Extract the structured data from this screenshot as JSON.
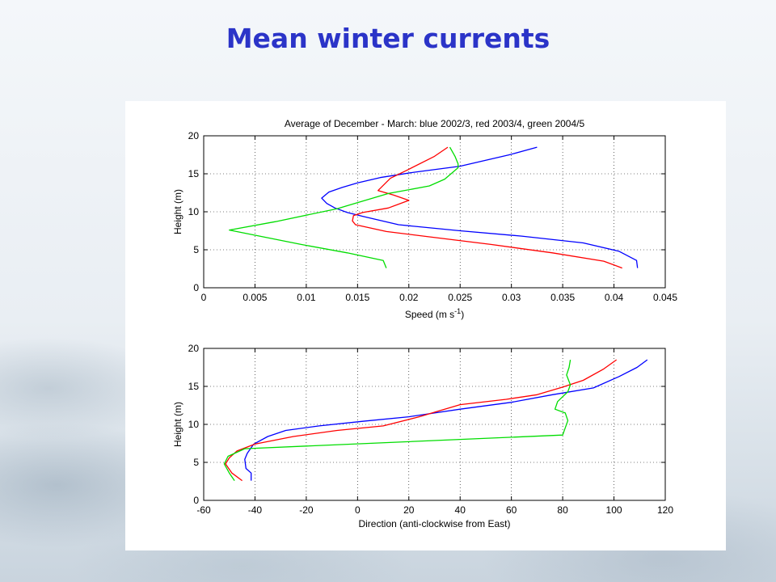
{
  "slide": {
    "title": "Mean winter currents"
  },
  "chart_data": [
    {
      "type": "line",
      "title": "Average of December - March: blue 2002/3, red 2003/4, green 2004/5",
      "xlabel_prefix": "Speed (m s",
      "xlabel_sup": "-1",
      "xlabel_suffix": ")",
      "ylabel": "Height (m)",
      "xlim": [
        0,
        0.045
      ],
      "ylim": [
        0,
        20
      ],
      "xticks": [
        0,
        0.005,
        0.01,
        0.015,
        0.02,
        0.025,
        0.03,
        0.035,
        0.04,
        0.045
      ],
      "xtick_labels": [
        "0",
        "0.005",
        "0.01",
        "0.015",
        "0.02",
        "0.025",
        "0.03",
        "0.035",
        "0.04",
        "0.045"
      ],
      "yticks": [
        0,
        5,
        10,
        15,
        20
      ],
      "ytick_labels": [
        "0",
        "5",
        "10",
        "15",
        "20"
      ],
      "grid": true,
      "series": [
        {
          "color": "#0000ff",
          "points": [
            [
              0.0423,
              2.6
            ],
            [
              0.0422,
              3.6
            ],
            [
              0.0405,
              4.8
            ],
            [
              0.037,
              5.9
            ],
            [
              0.031,
              6.8
            ],
            [
              0.025,
              7.5
            ],
            [
              0.019,
              8.3
            ],
            [
              0.0155,
              9.4
            ],
            [
              0.014,
              9.9
            ],
            [
              0.0128,
              10.5
            ],
            [
              0.012,
              11.1
            ],
            [
              0.0115,
              11.8
            ],
            [
              0.0122,
              12.6
            ],
            [
              0.0135,
              13.2
            ],
            [
              0.015,
              13.8
            ],
            [
              0.0172,
              14.5
            ],
            [
              0.0205,
              15.2
            ],
            [
              0.025,
              16.0
            ],
            [
              0.0298,
              17.5
            ],
            [
              0.0325,
              18.5
            ]
          ]
        },
        {
          "color": "#ff0000",
          "points": [
            [
              0.0408,
              2.6
            ],
            [
              0.039,
              3.5
            ],
            [
              0.034,
              4.6
            ],
            [
              0.028,
              5.7
            ],
            [
              0.022,
              6.7
            ],
            [
              0.0178,
              7.4
            ],
            [
              0.0148,
              8.3
            ],
            [
              0.0145,
              8.8
            ],
            [
              0.0146,
              9.5
            ],
            [
              0.0155,
              9.9
            ],
            [
              0.018,
              10.5
            ],
            [
              0.02,
              11.5
            ],
            [
              0.0185,
              12.2
            ],
            [
              0.017,
              12.8
            ],
            [
              0.0182,
              14.4
            ],
            [
              0.02,
              15.6
            ],
            [
              0.0225,
              17.3
            ],
            [
              0.0238,
              18.5
            ]
          ]
        },
        {
          "color": "#00dd00",
          "points": [
            [
              0.0178,
              2.6
            ],
            [
              0.0175,
              3.6
            ],
            [
              0.014,
              4.6
            ],
            [
              0.0095,
              5.7
            ],
            [
              0.0025,
              7.6
            ],
            [
              0.007,
              8.7
            ],
            [
              0.013,
              10.4
            ],
            [
              0.018,
              12.4
            ],
            [
              0.022,
              13.4
            ],
            [
              0.0235,
              14.3
            ],
            [
              0.0248,
              15.8
            ],
            [
              0.0248,
              16.3
            ],
            [
              0.0245,
              17.3
            ],
            [
              0.024,
              18.5
            ]
          ]
        }
      ]
    },
    {
      "type": "line",
      "xlabel": "Direction (anti-clockwise from East)",
      "ylabel": "Height (m)",
      "xlim": [
        -60,
        120
      ],
      "ylim": [
        0,
        20
      ],
      "xticks": [
        -60,
        -40,
        -20,
        0,
        20,
        40,
        60,
        80,
        100,
        120
      ],
      "xtick_labels": [
        "-60",
        "-40",
        "-20",
        "0",
        "20",
        "40",
        "60",
        "80",
        "100",
        "120"
      ],
      "yticks": [
        0,
        5,
        10,
        15,
        20
      ],
      "ytick_labels": [
        "0",
        "5",
        "10",
        "15",
        "20"
      ],
      "grid": true,
      "series": [
        {
          "color": "#0000ff",
          "points": [
            [
              -41.5,
              2.6
            ],
            [
              -41.5,
              3.6
            ],
            [
              -43.5,
              4.2
            ],
            [
              -44,
              5.4
            ],
            [
              -43,
              6.2
            ],
            [
              -40.5,
              7.4
            ],
            [
              -35,
              8.4
            ],
            [
              -28,
              9.2
            ],
            [
              -15,
              9.8
            ],
            [
              2,
              10.4
            ],
            [
              20,
              11.0
            ],
            [
              40,
              12.0
            ],
            [
              60,
              12.9
            ],
            [
              76,
              13.9
            ],
            [
              92,
              14.8
            ],
            [
              102,
              16.3
            ],
            [
              109,
              17.5
            ],
            [
              113,
              18.5
            ]
          ]
        },
        {
          "color": "#ff0000",
          "points": [
            [
              -45,
              2.6
            ],
            [
              -49,
              3.6
            ],
            [
              -51.5,
              4.8
            ],
            [
              -50,
              5.6
            ],
            [
              -47,
              6.5
            ],
            [
              -40,
              7.4
            ],
            [
              -25,
              8.4
            ],
            [
              -8,
              9.2
            ],
            [
              10,
              9.8
            ],
            [
              24,
              11.0
            ],
            [
              40,
              12.6
            ],
            [
              58,
              13.3
            ],
            [
              70,
              13.9
            ],
            [
              80,
              14.9
            ],
            [
              88,
              15.8
            ],
            [
              96,
              17.3
            ],
            [
              101,
              18.5
            ]
          ]
        },
        {
          "color": "#00dd00",
          "points": [
            [
              -48,
              2.6
            ],
            [
              -50,
              3.6
            ],
            [
              -52,
              4.8
            ],
            [
              -50.5,
              5.8
            ],
            [
              -44,
              6.8
            ],
            [
              80,
              8.6
            ],
            [
              82,
              10.5
            ],
            [
              81,
              11.5
            ],
            [
              77,
              12.0
            ],
            [
              78,
              13.0
            ],
            [
              82,
              14.3
            ],
            [
              83,
              15.2
            ],
            [
              81.5,
              16.5
            ],
            [
              82.5,
              17.5
            ],
            [
              83,
              18.5
            ]
          ]
        }
      ]
    }
  ]
}
